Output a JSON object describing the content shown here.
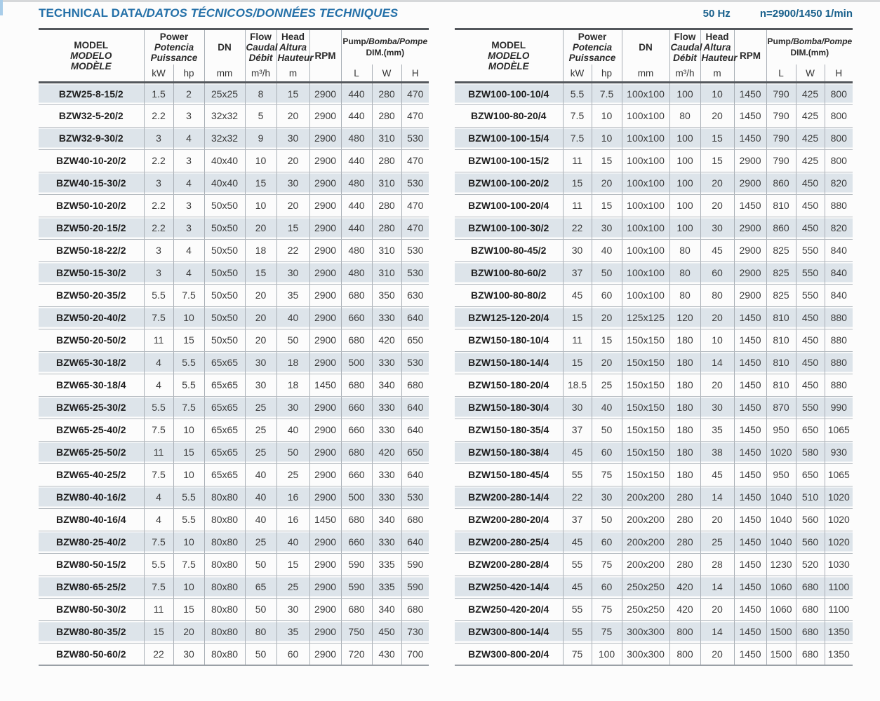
{
  "header": {
    "title_main": "TECHNICAL DATA",
    "title_rest": "/DATOS TÉCNICOS/DONNÉES TECHNIQUES",
    "frequency": "50 Hz",
    "speed": "n=2900/1450 1/min"
  },
  "colors": {
    "title_blue": "#2470a8",
    "specs_blue": "#19608c",
    "row_shaded": "#dde4ea",
    "rule_dark": "#53575c",
    "rule_light": "#a9afb6"
  },
  "columns": {
    "model": [
      "MODEL",
      "MODELO",
      "MODÈLE"
    ],
    "power": [
      "Power",
      "Potencia",
      "Puissance"
    ],
    "dn": "DN",
    "flow": [
      "Flow",
      "Caudal",
      "Débit"
    ],
    "head": [
      "Head",
      "Altura",
      "Hauteur"
    ],
    "rpm": "RPM",
    "dim_plain": "Pump",
    "dim_italic": "/Bomba/Pompe",
    "dim_sub": "DIM.(mm)",
    "unit_kw": "kW",
    "unit_hp": "hp",
    "unit_mm": "mm",
    "unit_flow": "m³/h",
    "unit_head": "m",
    "unit_l": "L",
    "unit_w": "W",
    "unit_h": "H"
  },
  "left_table_rows": [
    [
      "BZW25-8-15/2",
      "1.5",
      "2",
      "25x25",
      "8",
      "15",
      "2900",
      "440",
      "280",
      "470"
    ],
    [
      "BZW32-5-20/2",
      "2.2",
      "3",
      "32x32",
      "5",
      "20",
      "2900",
      "440",
      "280",
      "470"
    ],
    [
      "BZW32-9-30/2",
      "3",
      "4",
      "32x32",
      "9",
      "30",
      "2900",
      "480",
      "310",
      "530"
    ],
    [
      "BZW40-10-20/2",
      "2.2",
      "3",
      "40x40",
      "10",
      "20",
      "2900",
      "440",
      "280",
      "470"
    ],
    [
      "BZW40-15-30/2",
      "3",
      "4",
      "40x40",
      "15",
      "30",
      "2900",
      "480",
      "310",
      "530"
    ],
    [
      "BZW50-10-20/2",
      "2.2",
      "3",
      "50x50",
      "10",
      "20",
      "2900",
      "440",
      "280",
      "470"
    ],
    [
      "BZW50-20-15/2",
      "2.2",
      "3",
      "50x50",
      "20",
      "15",
      "2900",
      "440",
      "280",
      "470"
    ],
    [
      "BZW50-18-22/2",
      "3",
      "4",
      "50x50",
      "18",
      "22",
      "2900",
      "480",
      "310",
      "530"
    ],
    [
      "BZW50-15-30/2",
      "3",
      "4",
      "50x50",
      "15",
      "30",
      "2900",
      "480",
      "310",
      "530"
    ],
    [
      "BZW50-20-35/2",
      "5.5",
      "7.5",
      "50x50",
      "20",
      "35",
      "2900",
      "680",
      "350",
      "630"
    ],
    [
      "BZW50-20-40/2",
      "7.5",
      "10",
      "50x50",
      "20",
      "40",
      "2900",
      "660",
      "330",
      "640"
    ],
    [
      "BZW50-20-50/2",
      "11",
      "15",
      "50x50",
      "20",
      "50",
      "2900",
      "680",
      "420",
      "650"
    ],
    [
      "BZW65-30-18/2",
      "4",
      "5.5",
      "65x65",
      "30",
      "18",
      "2900",
      "500",
      "330",
      "530"
    ],
    [
      "BZW65-30-18/4",
      "4",
      "5.5",
      "65x65",
      "30",
      "18",
      "1450",
      "680",
      "340",
      "680"
    ],
    [
      "BZW65-25-30/2",
      "5.5",
      "7.5",
      "65x65",
      "25",
      "30",
      "2900",
      "660",
      "330",
      "640"
    ],
    [
      "BZW65-25-40/2",
      "7.5",
      "10",
      "65x65",
      "25",
      "40",
      "2900",
      "660",
      "330",
      "640"
    ],
    [
      "BZW65-25-50/2",
      "11",
      "15",
      "65x65",
      "25",
      "50",
      "2900",
      "680",
      "420",
      "650"
    ],
    [
      "BZW65-40-25/2",
      "7.5",
      "10",
      "65x65",
      "40",
      "25",
      "2900",
      "660",
      "330",
      "640"
    ],
    [
      "BZW80-40-16/2",
      "4",
      "5.5",
      "80x80",
      "40",
      "16",
      "2900",
      "500",
      "330",
      "530"
    ],
    [
      "BZW80-40-16/4",
      "4",
      "5.5",
      "80x80",
      "40",
      "16",
      "1450",
      "680",
      "340",
      "680"
    ],
    [
      "BZW80-25-40/2",
      "7.5",
      "10",
      "80x80",
      "25",
      "40",
      "2900",
      "660",
      "330",
      "640"
    ],
    [
      "BZW80-50-15/2",
      "5.5",
      "7.5",
      "80x80",
      "50",
      "15",
      "2900",
      "590",
      "335",
      "590"
    ],
    [
      "BZW80-65-25/2",
      "7.5",
      "10",
      "80x80",
      "65",
      "25",
      "2900",
      "590",
      "335",
      "590"
    ],
    [
      "BZW80-50-30/2",
      "11",
      "15",
      "80x80",
      "50",
      "30",
      "2900",
      "680",
      "340",
      "680"
    ],
    [
      "BZW80-80-35/2",
      "15",
      "20",
      "80x80",
      "80",
      "35",
      "2900",
      "750",
      "450",
      "730"
    ],
    [
      "BZW80-50-60/2",
      "22",
      "30",
      "80x80",
      "50",
      "60",
      "2900",
      "720",
      "430",
      "700"
    ]
  ],
  "right_table_rows": [
    [
      "BZW100-100-10/4",
      "5.5",
      "7.5",
      "100x100",
      "100",
      "10",
      "1450",
      "790",
      "425",
      "800"
    ],
    [
      "BZW100-80-20/4",
      "7.5",
      "10",
      "100x100",
      "80",
      "20",
      "1450",
      "790",
      "425",
      "800"
    ],
    [
      "BZW100-100-15/4",
      "7.5",
      "10",
      "100x100",
      "100",
      "15",
      "1450",
      "790",
      "425",
      "800"
    ],
    [
      "BZW100-100-15/2",
      "11",
      "15",
      "100x100",
      "100",
      "15",
      "2900",
      "790",
      "425",
      "800"
    ],
    [
      "BZW100-100-20/2",
      "15",
      "20",
      "100x100",
      "100",
      "20",
      "2900",
      "860",
      "450",
      "820"
    ],
    [
      "BZW100-100-20/4",
      "11",
      "15",
      "100x100",
      "100",
      "20",
      "1450",
      "810",
      "450",
      "880"
    ],
    [
      "BZW100-100-30/2",
      "22",
      "30",
      "100x100",
      "100",
      "30",
      "2900",
      "860",
      "450",
      "820"
    ],
    [
      "BZW100-80-45/2",
      "30",
      "40",
      "100x100",
      "80",
      "45",
      "2900",
      "825",
      "550",
      "840"
    ],
    [
      "BZW100-80-60/2",
      "37",
      "50",
      "100x100",
      "80",
      "60",
      "2900",
      "825",
      "550",
      "840"
    ],
    [
      "BZW100-80-80/2",
      "45",
      "60",
      "100x100",
      "80",
      "80",
      "2900",
      "825",
      "550",
      "840"
    ],
    [
      "BZW125-120-20/4",
      "15",
      "20",
      "125x125",
      "120",
      "20",
      "1450",
      "810",
      "450",
      "880"
    ],
    [
      "BZW150-180-10/4",
      "11",
      "15",
      "150x150",
      "180",
      "10",
      "1450",
      "810",
      "450",
      "880"
    ],
    [
      "BZW150-180-14/4",
      "15",
      "20",
      "150x150",
      "180",
      "14",
      "1450",
      "810",
      "450",
      "880"
    ],
    [
      "BZW150-180-20/4",
      "18.5",
      "25",
      "150x150",
      "180",
      "20",
      "1450",
      "810",
      "450",
      "880"
    ],
    [
      "BZW150-180-30/4",
      "30",
      "40",
      "150x150",
      "180",
      "30",
      "1450",
      "870",
      "550",
      "990"
    ],
    [
      "BZW150-180-35/4",
      "37",
      "50",
      "150x150",
      "180",
      "35",
      "1450",
      "950",
      "650",
      "1065"
    ],
    [
      "BZW150-180-38/4",
      "45",
      "60",
      "150x150",
      "180",
      "38",
      "1450",
      "1020",
      "580",
      "930"
    ],
    [
      "BZW150-180-45/4",
      "55",
      "75",
      "150x150",
      "180",
      "45",
      "1450",
      "950",
      "650",
      "1065"
    ],
    [
      "BZW200-280-14/4",
      "22",
      "30",
      "200x200",
      "280",
      "14",
      "1450",
      "1040",
      "510",
      "1020"
    ],
    [
      "BZW200-280-20/4",
      "37",
      "50",
      "200x200",
      "280",
      "20",
      "1450",
      "1040",
      "560",
      "1020"
    ],
    [
      "BZW200-280-25/4",
      "45",
      "60",
      "200x200",
      "280",
      "25",
      "1450",
      "1040",
      "560",
      "1020"
    ],
    [
      "BZW200-280-28/4",
      "55",
      "75",
      "200x200",
      "280",
      "28",
      "1450",
      "1230",
      "520",
      "1030"
    ],
    [
      "BZW250-420-14/4",
      "45",
      "60",
      "250x250",
      "420",
      "14",
      "1450",
      "1060",
      "680",
      "1100"
    ],
    [
      "BZW250-420-20/4",
      "55",
      "75",
      "250x250",
      "420",
      "20",
      "1450",
      "1060",
      "680",
      "1100"
    ],
    [
      "BZW300-800-14/4",
      "55",
      "75",
      "300x300",
      "800",
      "14",
      "1450",
      "1500",
      "680",
      "1350"
    ],
    [
      "BZW300-800-20/4",
      "75",
      "100",
      "300x300",
      "800",
      "20",
      "1450",
      "1500",
      "680",
      "1350"
    ]
  ]
}
